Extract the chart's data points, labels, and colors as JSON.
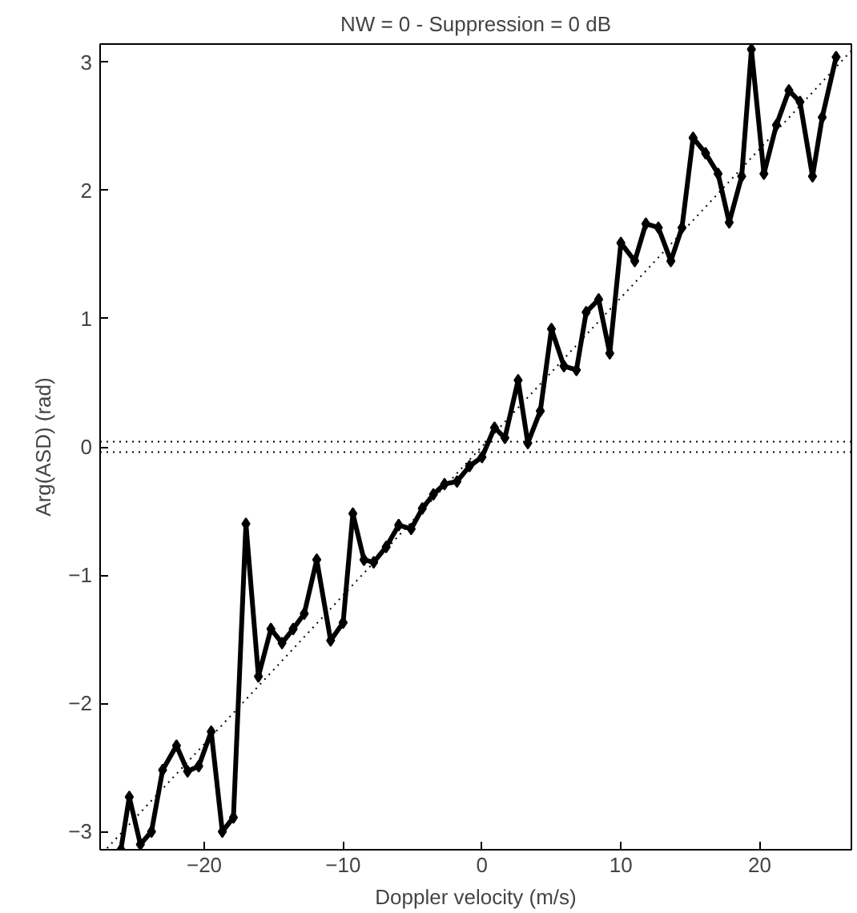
{
  "chart_data": {
    "type": "line",
    "title": "NW = 0 - Suppression = 0 dB",
    "xlabel": "Doppler velocity (m/s)",
    "ylabel": "Arg(ASD) (rad)",
    "xlim": [
      -27.5,
      26.6
    ],
    "ylim": [
      -3.1416,
      3.1416
    ],
    "xticks": [
      -20,
      -10,
      0,
      10,
      20
    ],
    "yticks": [
      -3,
      -2,
      -1,
      0,
      1,
      2,
      3
    ],
    "grid": false,
    "series": [
      {
        "color": "#000000",
        "marker": "diamond",
        "line_style": "solid",
        "x": [
          -26.0,
          -25.4,
          -24.6,
          -23.8,
          -23.0,
          -22.0,
          -21.2,
          -20.4,
          -19.5,
          -18.7,
          -17.9,
          -17.0,
          -16.1,
          -15.2,
          -14.4,
          -13.6,
          -12.8,
          -11.9,
          -10.9,
          -10.0,
          -9.3,
          -8.5,
          -7.8,
          -6.9,
          -6.0,
          -5.1,
          -4.3,
          -3.5,
          -2.7,
          -1.8,
          -0.9,
          0.0,
          0.9,
          1.65,
          2.6,
          3.3,
          4.2,
          5.0,
          5.9,
          6.8,
          7.5,
          8.4,
          9.2,
          10.0,
          11.0,
          11.8,
          12.7,
          13.6,
          14.4,
          15.2,
          16.1,
          17.0,
          17.8,
          18.7,
          19.4,
          20.3,
          21.2,
          22.1,
          22.9,
          23.8,
          24.5,
          25.5
        ],
        "values": [
          -3.14,
          -2.73,
          -3.1,
          -3.0,
          -2.52,
          -2.33,
          -2.53,
          -2.49,
          -2.22,
          -3.0,
          -2.89,
          -0.6,
          -1.79,
          -1.42,
          -1.53,
          -1.42,
          -1.3,
          -0.88,
          -1.51,
          -1.37,
          -0.52,
          -0.88,
          -0.9,
          -0.78,
          -0.61,
          -0.64,
          -0.48,
          -0.37,
          -0.29,
          -0.27,
          -0.15,
          -0.08,
          0.15,
          0.07,
          0.52,
          0.03,
          0.28,
          0.92,
          0.63,
          0.6,
          1.05,
          1.15,
          0.73,
          1.59,
          1.45,
          1.74,
          1.71,
          1.45,
          1.71,
          2.41,
          2.29,
          2.13,
          1.75,
          2.11,
          3.1,
          2.13,
          2.51,
          2.78,
          2.69,
          2.11,
          2.57,
          3.04
        ]
      },
      {
        "color": "#000000",
        "marker": "none",
        "line_style": "dotted",
        "x": [
          -27.0,
          26.6
        ],
        "values": [
          -3.13,
          3.09
        ]
      }
    ],
    "ref_lines": [
      {
        "axis": "y",
        "value": 0.04,
        "line_style": "dotted",
        "color": "#000000"
      },
      {
        "axis": "y",
        "value": -0.04,
        "line_style": "dotted",
        "color": "#000000"
      }
    ]
  }
}
